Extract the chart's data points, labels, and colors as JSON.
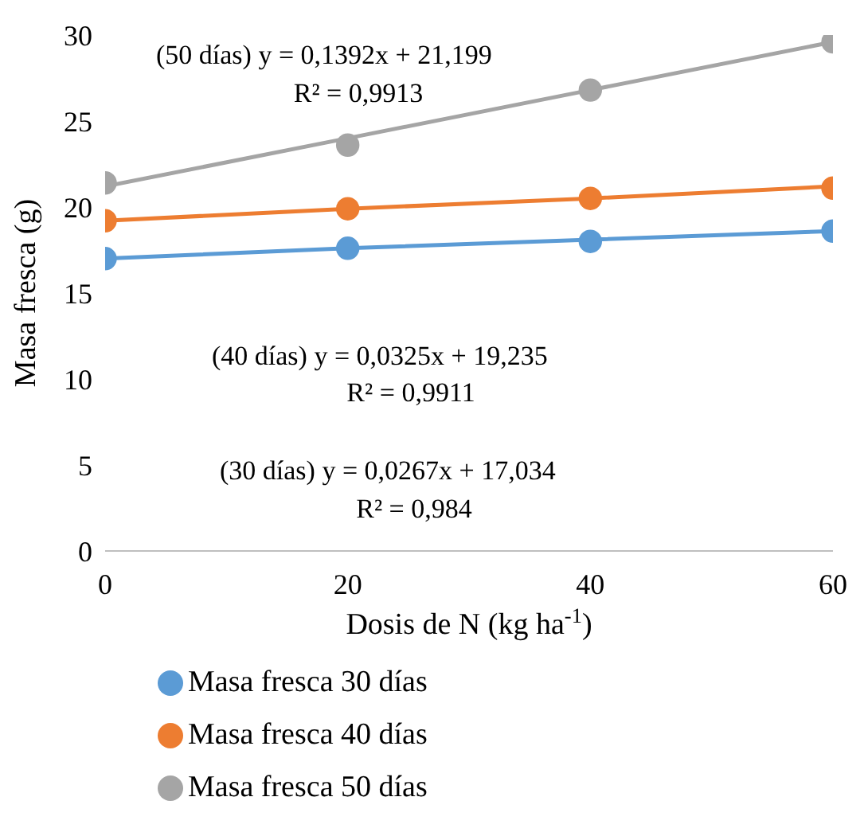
{
  "chart_data": {
    "type": "scatter",
    "xlabel": "Dosis de N (kg ha$^{-1}$)",
    "ylabel": "Masa fresca (g)",
    "x": [
      0,
      20,
      40,
      60
    ],
    "xlim": [
      0,
      60
    ],
    "xticks": [
      0,
      20,
      40,
      60
    ],
    "ylim": [
      0,
      30
    ],
    "yticks": [
      0,
      5,
      10,
      15,
      20,
      25,
      30
    ],
    "marker": "circle",
    "legend": "bottom",
    "series": [
      {
        "name": "Masa fresca 30 días",
        "color": "#5b9bd5",
        "values": [
          17.0,
          17.6,
          18.0,
          18.6
        ]
      },
      {
        "name": "Masa fresca 40 días",
        "color": "#ed7d31",
        "values": [
          19.2,
          19.9,
          20.5,
          21.1
        ]
      },
      {
        "name": "Masa fresca 50 días",
        "color": "#a5a5a5",
        "values": [
          21.4,
          23.6,
          26.8,
          29.6
        ]
      },
      {
        "type": "line",
        "marker": "none",
        "color": "#5b9bd5",
        "values": [
          17.0,
          17.6,
          18.1,
          18.6
        ]
      },
      {
        "type": "line",
        "marker": "none",
        "color": "#ed7d31",
        "values": [
          19.2,
          19.9,
          20.5,
          21.2
        ]
      },
      {
        "type": "line",
        "marker": "none",
        "color": "#a5a5a5",
        "values": [
          21.2,
          24.0,
          26.8,
          29.6
        ]
      }
    ],
    "annotations": [
      "(50 días) y = 0,1392x + 21,199",
      "R² = 0,9913",
      "(40 días) y = 0,0325x + 19,235",
      "R² = 0,9911",
      "(30 días) y = 0,0267x + 17,034",
      "R² = 0,984"
    ]
  }
}
